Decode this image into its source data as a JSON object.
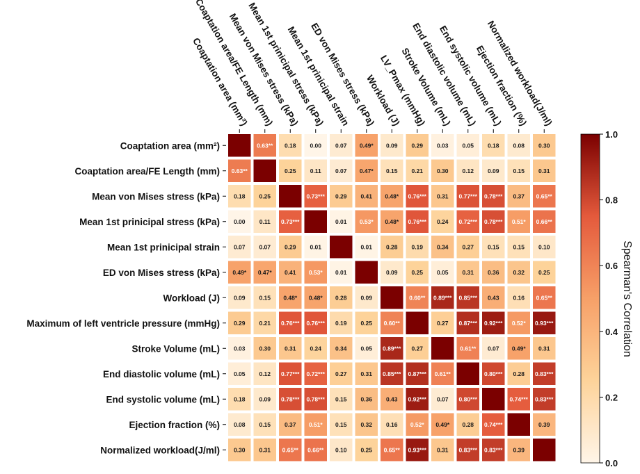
{
  "chart_data": {
    "type": "heatmap",
    "title": "",
    "row_labels": [
      "Coaptation area (mm²)",
      "Coaptation area/FE Length (mm)",
      "Mean von Mises stress (kPa)",
      "Mean 1st prinicipal stress (kPa)",
      "Mean 1st prinicipal strain",
      "ED von Mises stress (kPa)",
      "Workload (J)",
      "Maximum of left ventricle pressure (mmHg)",
      "Stroke Volume (mL)",
      "End diastolic volume (mL)",
      "End systolic volume (mL)",
      "Ejection fraction (%)",
      "Normalized workload(J/ml)"
    ],
    "column_labels": [
      "Coaptation area (mm²)",
      "Coaptation area/FE Length (mm)",
      "Mean von Mises stress (kPa)",
      "Mean 1st prinicipal stress (kPa)",
      "Mean 1st prinicipal strain",
      "ED von Mises stress (kPa)",
      "Workload (J)",
      "LV_Pmax (mmHg)",
      "Stroke Volume (mL)",
      "End diastolic volume (mL)",
      "End systolic volume (mL)",
      "Ejection fraction (%)",
      "Normalized workload(J/ml)"
    ],
    "values": [
      [
        1.0,
        0.63,
        0.18,
        0.0,
        0.07,
        0.49,
        0.09,
        0.29,
        0.03,
        0.05,
        0.18,
        0.08,
        0.3
      ],
      [
        0.63,
        1.0,
        0.25,
        0.11,
        0.07,
        0.47,
        0.15,
        0.21,
        0.3,
        0.12,
        0.09,
        0.15,
        0.31
      ],
      [
        0.18,
        0.25,
        1.0,
        0.73,
        0.29,
        0.41,
        0.48,
        0.76,
        0.31,
        0.77,
        0.78,
        0.37,
        0.65
      ],
      [
        0.0,
        0.11,
        0.73,
        1.0,
        0.01,
        0.53,
        0.48,
        0.76,
        0.24,
        0.72,
        0.78,
        0.51,
        0.66
      ],
      [
        0.07,
        0.07,
        0.29,
        0.01,
        1.0,
        0.01,
        0.28,
        0.19,
        0.34,
        0.27,
        0.15,
        0.15,
        0.1
      ],
      [
        0.49,
        0.47,
        0.41,
        0.53,
        0.01,
        1.0,
        0.09,
        0.25,
        0.05,
        0.31,
        0.36,
        0.32,
        0.25
      ],
      [
        0.09,
        0.15,
        0.48,
        0.48,
        0.28,
        0.09,
        1.0,
        0.6,
        0.89,
        0.85,
        0.43,
        0.16,
        0.65
      ],
      [
        0.29,
        0.21,
        0.76,
        0.76,
        0.19,
        0.25,
        0.6,
        1.0,
        0.27,
        0.87,
        0.92,
        0.52,
        0.93
      ],
      [
        0.03,
        0.3,
        0.31,
        0.24,
        0.34,
        0.05,
        0.89,
        0.27,
        1.0,
        0.61,
        0.07,
        0.49,
        0.31
      ],
      [
        0.05,
        0.12,
        0.77,
        0.72,
        0.27,
        0.31,
        0.85,
        0.87,
        0.61,
        1.0,
        0.8,
        0.28,
        0.83
      ],
      [
        0.18,
        0.09,
        0.78,
        0.78,
        0.15,
        0.36,
        0.43,
        0.92,
        0.07,
        0.8,
        1.0,
        0.74,
        0.83
      ],
      [
        0.08,
        0.15,
        0.37,
        0.51,
        0.15,
        0.32,
        0.16,
        0.52,
        0.49,
        0.28,
        0.74,
        1.0,
        0.39
      ],
      [
        0.3,
        0.31,
        0.65,
        0.66,
        0.1,
        0.25,
        0.65,
        0.93,
        0.31,
        0.83,
        0.83,
        0.39,
        1.0
      ]
    ],
    "cell_labels": [
      [
        "",
        "0.63**",
        "0.18",
        "0.00",
        "0.07",
        "0.49*",
        "0.09",
        "0.29",
        "0.03",
        "0.05",
        "0.18",
        "0.08",
        "0.30"
      ],
      [
        "0.63**",
        "",
        "0.25",
        "0.11",
        "0.07",
        "0.47*",
        "0.15",
        "0.21",
        "0.30",
        "0.12",
        "0.09",
        "0.15",
        "0.31"
      ],
      [
        "0.18",
        "0.25",
        "",
        "0.73***",
        "0.29",
        "0.41",
        "0.48*",
        "0.76***",
        "0.31",
        "0.77***",
        "0.78***",
        "0.37",
        "0.65**"
      ],
      [
        "0.00",
        "0.11",
        "0.73***",
        "",
        "0.01",
        "0.53*",
        "0.48*",
        "0.76***",
        "0.24",
        "0.72***",
        "0.78***",
        "0.51*",
        "0.66**"
      ],
      [
        "0.07",
        "0.07",
        "0.29",
        "0.01",
        "",
        "0.01",
        "0.28",
        "0.19",
        "0.34",
        "0.27",
        "0.15",
        "0.15",
        "0.10"
      ],
      [
        "0.49*",
        "0.47*",
        "0.41",
        "0.53*",
        "0.01",
        "",
        "0.09",
        "0.25",
        "0.05",
        "0.31",
        "0.36",
        "0.32",
        "0.25"
      ],
      [
        "0.09",
        "0.15",
        "0.48*",
        "0.48*",
        "0.28",
        "0.09",
        "",
        "0.60**",
        "0.89***",
        "0.85***",
        "0.43",
        "0.16",
        "0.65**"
      ],
      [
        "0.29",
        "0.21",
        "0.76***",
        "0.76***",
        "0.19",
        "0.25",
        "0.60**",
        "",
        "0.27",
        "0.87***",
        "0.92***",
        "0.52*",
        "0.93***"
      ],
      [
        "0.03",
        "0.30",
        "0.31",
        "0.24",
        "0.34",
        "0.05",
        "0.89***",
        "0.27",
        "",
        "0.61**",
        "0.07",
        "0.49*",
        "0.31"
      ],
      [
        "0.05",
        "0.12",
        "0.77***",
        "0.72***",
        "0.27",
        "0.31",
        "0.85***",
        "0.87***",
        "0.61**",
        "",
        "0.80***",
        "0.28",
        "0.83***"
      ],
      [
        "0.18",
        "0.09",
        "0.78***",
        "0.78***",
        "0.15",
        "0.36",
        "0.43",
        "0.92***",
        "0.07",
        "0.80***",
        "",
        "0.74***",
        "0.83***"
      ],
      [
        "0.08",
        "0.15",
        "0.37",
        "0.51*",
        "0.15",
        "0.32",
        "0.16",
        "0.52*",
        "0.49*",
        "0.28",
        "0.74***",
        "",
        "0.39"
      ],
      [
        "0.30",
        "0.31",
        "0.65**",
        "0.66**",
        "0.10",
        "0.25",
        "0.65**",
        "0.93***",
        "0.31",
        "0.83***",
        "0.83***",
        "0.39",
        ""
      ]
    ],
    "colorbar": {
      "label": "Spearman's Correlation",
      "range": [
        0.0,
        1.0
      ],
      "ticks": [
        "0.0",
        "0.2",
        "0.4",
        "0.6",
        "0.8",
        "1.0"
      ]
    },
    "colors": {
      "low": "#fff5e8",
      "mid1": "#fdd39a",
      "mid2": "#f7a068",
      "mid3": "#e45a3c",
      "high": "#7b0000"
    }
  }
}
